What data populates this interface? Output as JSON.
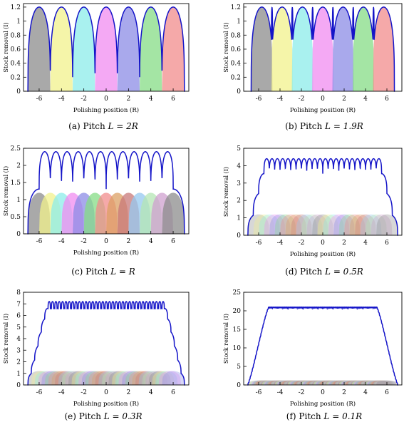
{
  "chart_data": [
    {
      "type": "area",
      "caption": "(a) Pitch  L = 2R",
      "caption_parts": {
        "letter": "(a)",
        "word": "Pitch",
        "math": "L = 2R"
      },
      "xlabel": "Polishing position (R)",
      "ylabel": "Stock removal (I)",
      "xlim": [
        -7.4,
        7.4
      ],
      "ylim": [
        0,
        1.25
      ],
      "x_ticks": [
        "-6",
        "-4",
        "-2",
        "0",
        "2",
        "4",
        "6"
      ],
      "y_ticks": [
        "0",
        "0.2",
        "0.4",
        "0.6",
        "0.8",
        "1",
        "1.2"
      ],
      "pitch_R": 2,
      "spot_centers": [
        -6,
        -4,
        -2,
        0,
        2,
        4,
        6
      ],
      "spot_peak": 1.2,
      "series": [
        {
          "name": "Total removal",
          "peak": 1.2
        }
      ],
      "grid": false
    },
    {
      "type": "area",
      "caption": "(b) Pitch  L = 1.9R",
      "caption_parts": {
        "letter": "(b)",
        "word": "Pitch",
        "math": "L = 1.9R"
      },
      "xlabel": "Polishing position (R)",
      "ylabel": "Stock removal (I)",
      "xlim": [
        -7.4,
        7.4
      ],
      "ylim": [
        0,
        1.25
      ],
      "x_ticks": [
        "-6",
        "-4",
        "-2",
        "0",
        "2",
        "4",
        "6"
      ],
      "y_ticks": [
        "0",
        "0.2",
        "0.4",
        "0.6",
        "0.8",
        "1",
        "1.2"
      ],
      "pitch_R": 1.9,
      "spot_centers": [
        -5.7,
        -3.8,
        -1.9,
        0,
        1.9,
        3.8,
        5.7
      ],
      "spot_peak": 1.2,
      "series": [
        {
          "name": "Total removal",
          "peak": 1.2
        }
      ],
      "grid": false
    },
    {
      "type": "area",
      "caption": "(c) Pitch  L = R",
      "caption_parts": {
        "letter": "(c)",
        "word": "Pitch",
        "math": "L = R"
      },
      "xlabel": "Polishing position (R)",
      "ylabel": "Stock removal (I)",
      "xlim": [
        -7.4,
        7.4
      ],
      "ylim": [
        0,
        2.5
      ],
      "x_ticks": [
        "-6",
        "-4",
        "-2",
        "0",
        "2",
        "4",
        "6"
      ],
      "y_ticks": [
        "0",
        "0.5",
        "1",
        "1.5",
        "2",
        "2.5"
      ],
      "pitch_R": 1,
      "spot_centers": [
        -6,
        -5,
        -4,
        -3,
        -2,
        -1,
        0,
        1,
        2,
        3,
        4,
        5,
        6
      ],
      "spot_peak": 1.2,
      "series": [
        {
          "name": "Total removal",
          "peak": 2.4
        }
      ],
      "grid": false
    },
    {
      "type": "area",
      "caption": "(d) Pitch  L = 0.5R",
      "caption_parts": {
        "letter": "(d)",
        "word": "Pitch",
        "math": "L = 0.5R"
      },
      "xlabel": "Polishing position (R)",
      "ylabel": "Stock removal (I)",
      "xlim": [
        -7.4,
        7.4
      ],
      "ylim": [
        0,
        5
      ],
      "x_ticks": [
        "-6",
        "-4",
        "-2",
        "0",
        "2",
        "4",
        "6"
      ],
      "y_ticks": [
        "0",
        "1",
        "2",
        "3",
        "4",
        "5"
      ],
      "pitch_R": 0.5,
      "spot_centers": [
        -6,
        -5.5,
        -5,
        -4.5,
        -4,
        -3.5,
        -3,
        -2.5,
        -2,
        -1.5,
        -1,
        -0.5,
        0,
        0.5,
        1,
        1.5,
        2,
        2.5,
        3,
        3.5,
        4,
        4.5,
        5,
        5.5,
        6
      ],
      "spot_peak": 1.2,
      "series": [
        {
          "name": "Total removal",
          "peak": 4.4
        }
      ],
      "grid": false
    },
    {
      "type": "area",
      "caption": "(e) Pitch  L = 0.3R",
      "caption_parts": {
        "letter": "(e)",
        "word": "Pitch",
        "math": "L = 0.3R"
      },
      "xlabel": "Polishing position (R)",
      "ylabel": "Stock removal (I)",
      "xlim": [
        -7.4,
        7.4
      ],
      "ylim": [
        0,
        8
      ],
      "x_ticks": [
        "-6",
        "-4",
        "-2",
        "0",
        "2",
        "4",
        "6"
      ],
      "y_ticks": [
        "0",
        "1",
        "2",
        "3",
        "4",
        "5",
        "6",
        "7",
        "8"
      ],
      "pitch_R": 0.3,
      "spot_centers": [
        -6,
        -5.7,
        -5.4,
        -5.1,
        -4.8,
        -4.5,
        -4.2,
        -3.9,
        -3.6,
        -3.3,
        -3,
        -2.7,
        -2.4,
        -2.1,
        -1.8,
        -1.5,
        -1.2,
        -0.9,
        -0.6,
        -0.3,
        0,
        0.3,
        0.6,
        0.9,
        1.2,
        1.5,
        1.8,
        2.1,
        2.4,
        2.7,
        3,
        3.3,
        3.6,
        3.9,
        4.2,
        4.5,
        4.8,
        5.1,
        5.4,
        5.7,
        6
      ],
      "spot_peak": 1.2,
      "series": [
        {
          "name": "Total removal",
          "peak": 7.2
        }
      ],
      "grid": false
    },
    {
      "type": "area",
      "caption": "(f) Pitch  L = 0.1R",
      "caption_parts": {
        "letter": "(f)",
        "word": "Pitch",
        "math": "L = 0.1R"
      },
      "xlabel": "Polishing position (R)",
      "ylabel": "Stock removal (I)",
      "xlim": [
        -7.4,
        7.4
      ],
      "ylim": [
        0,
        25
      ],
      "x_ticks": [
        "-6",
        "-4",
        "-2",
        "0",
        "2",
        "4",
        "6"
      ],
      "y_ticks": [
        "0",
        "5",
        "10",
        "15",
        "20",
        "25"
      ],
      "pitch_R": 0.1,
      "spot_centers": [
        -6,
        -5.9,
        -5.8,
        -5.7,
        -5.6,
        -5.5,
        -5.4,
        -5.3,
        -5.2,
        -5.1,
        -5,
        -4.9,
        -4.8,
        -4.7,
        -4.6,
        -4.5,
        -4.4,
        -4.3,
        -4.2,
        -4.1,
        -4,
        -3.9,
        -3.8,
        -3.7,
        -3.6,
        -3.5,
        -3.4,
        -3.3,
        -3.2,
        -3.1,
        -3,
        -2.9,
        -2.8,
        -2.7,
        -2.6,
        -2.5,
        -2.4,
        -2.3,
        -2.2,
        -2.1,
        -2,
        -1.9,
        -1.8,
        -1.7,
        -1.6,
        -1.5,
        -1.4,
        -1.3,
        -1.2,
        -1.1,
        -1,
        -0.9,
        -0.8,
        -0.7,
        -0.6,
        -0.5,
        -0.4,
        -0.3,
        -0.2,
        -0.1,
        0,
        0.1,
        0.2,
        0.3,
        0.4,
        0.5,
        0.6,
        0.7,
        0.8,
        0.9,
        1,
        1.1,
        1.2,
        1.3,
        1.4,
        1.5,
        1.6,
        1.7,
        1.8,
        1.9,
        2,
        2.1,
        2.2,
        2.3,
        2.4,
        2.5,
        2.6,
        2.7,
        2.8,
        2.9,
        3,
        3.1,
        3.2,
        3.3,
        3.4,
        3.5,
        3.6,
        3.7,
        3.8,
        3.9,
        4,
        4.1,
        4.2,
        4.3,
        4.4,
        4.5,
        4.6,
        4.7,
        4.8,
        4.9,
        5,
        5.1,
        5.2,
        5.3,
        5.4,
        5.5,
        5.6,
        5.7,
        5.8,
        5.9,
        6
      ],
      "spot_peak": 1.2,
      "series": [
        {
          "name": "Total removal",
          "peak": 21.0
        }
      ],
      "grid": false
    }
  ],
  "colors": {
    "total_line": "#1414c8",
    "axis": "#000000",
    "spot_palette": [
      "#8c8c8c",
      "#f2f28c",
      "#8cecea",
      "#f08cf0",
      "#8c8ce6",
      "#86dc86",
      "#f28c8c",
      "#dca064",
      "#c87878",
      "#96c8f0",
      "#b4e6b4",
      "#cfa0cf"
    ]
  }
}
